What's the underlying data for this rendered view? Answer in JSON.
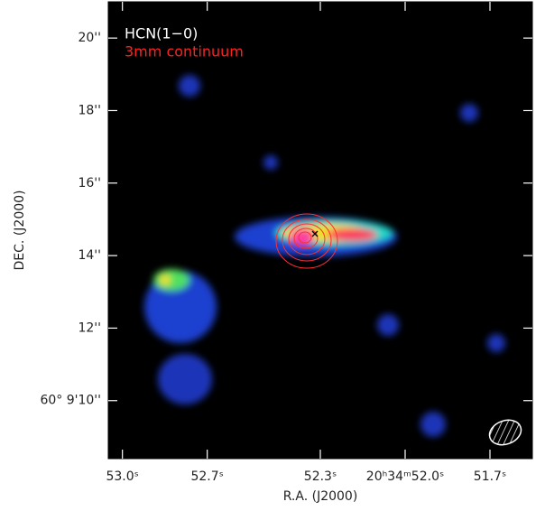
{
  "chart_data": {
    "type": "image",
    "legend": [
      "HCN(1−0)",
      "3mm continuum"
    ],
    "legend_colors": [
      "#ffffff",
      "#ff2020"
    ],
    "xlabel": "R.A. (J2000)",
    "ylabel": "DEC. (J2000)",
    "xlim": [
      53.05,
      51.55
    ],
    "ylim": [
      8.4,
      21.0
    ],
    "xticks": [
      {
        "value": 53.0,
        "label": "53.0ˢ"
      },
      {
        "value": 52.7,
        "label": "52.7ˢ"
      },
      {
        "value": 52.3,
        "label": "52.3ˢ"
      },
      {
        "value": 52.0,
        "label": "20ʰ34ᵐ52.0ˢ"
      },
      {
        "value": 51.7,
        "label": "51.7ˢ"
      }
    ],
    "yticks": [
      {
        "value": 20,
        "label": "20''"
      },
      {
        "value": 18,
        "label": "18''"
      },
      {
        "value": 16,
        "label": "16''"
      },
      {
        "value": 14,
        "label": "14''"
      },
      {
        "value": 12,
        "label": "12''"
      },
      {
        "value": 10,
        "label": "60° 9'10''"
      }
    ]
  }
}
